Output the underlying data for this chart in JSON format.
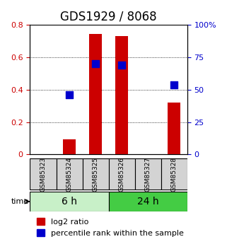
{
  "title": "GDS1929 / 8068",
  "samples": [
    "GSM85323",
    "GSM85324",
    "GSM85325",
    "GSM85326",
    "GSM85327",
    "GSM85328"
  ],
  "log2_ratio": [
    0.0,
    0.095,
    0.74,
    0.73,
    0.0,
    0.32
  ],
  "percentile_rank": [
    null,
    0.46,
    0.7,
    0.685,
    null,
    0.535
  ],
  "groups": [
    {
      "label": "6 h",
      "samples": [
        0,
        1,
        2
      ],
      "color": "#c8f0c8"
    },
    {
      "label": "24 h",
      "samples": [
        3,
        4,
        5
      ],
      "color": "#44cc44"
    }
  ],
  "bar_color": "#cc0000",
  "dot_color": "#0000cc",
  "left_axis_color": "#cc0000",
  "right_axis_color": "#0000cc",
  "ylim_left": [
    0,
    0.8
  ],
  "ylim_right": [
    0,
    100
  ],
  "left_yticks": [
    0,
    0.2,
    0.4,
    0.6,
    0.8
  ],
  "right_yticks": [
    0,
    25,
    50,
    75,
    100
  ],
  "left_yticklabels": [
    "0",
    "0.2",
    "0.4",
    "0.6",
    "0.8"
  ],
  "right_yticklabels": [
    "0",
    "25",
    "50",
    "75",
    "100%"
  ],
  "bar_width": 0.5,
  "dot_size": 60,
  "title_fontsize": 12,
  "tick_label_fontsize": 8,
  "legend_fontsize": 8,
  "group_label_fontsize": 10,
  "time_label": "time"
}
